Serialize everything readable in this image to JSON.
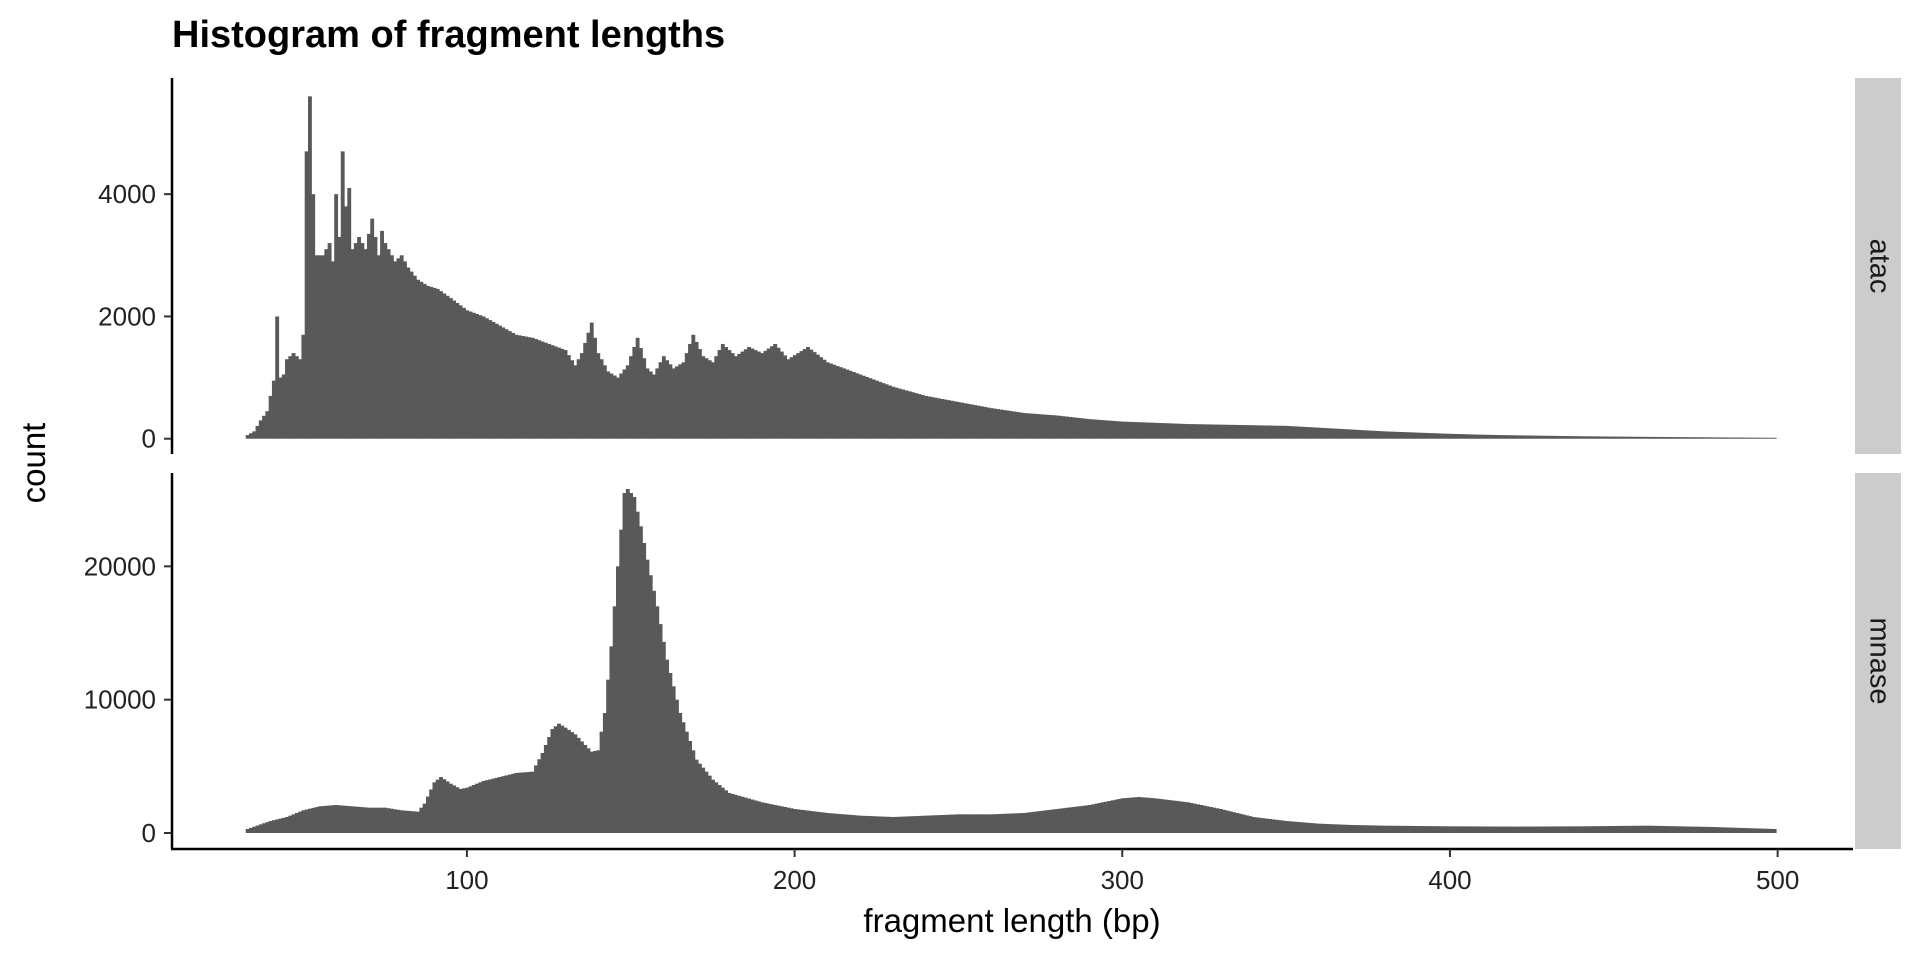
{
  "chart_data": {
    "type": "bar",
    "subtype": "faceted-histogram",
    "title": "Histogram of fragment lengths",
    "xlabel": "fragment length (bp)",
    "ylabel": "count",
    "xlim": [
      10,
      523
    ],
    "x_ticks": [
      100,
      200,
      300,
      400,
      500
    ],
    "bar_color": "#595959",
    "strip_color": "#cccccc",
    "grid": false,
    "bin_width": 1,
    "facets": [
      {
        "name": "atac",
        "ylim": [
          -250,
          5900
        ],
        "y_ticks": [
          0,
          2000,
          4000
        ],
        "peaks": [
          {
            "x": 33,
            "y": 60
          },
          {
            "x": 35,
            "y": 120
          },
          {
            "x": 37,
            "y": 300
          },
          {
            "x": 39,
            "y": 450
          },
          {
            "x": 41,
            "y": 950
          },
          {
            "x": 42,
            "y": 2000
          },
          {
            "x": 43,
            "y": 1000
          },
          {
            "x": 44,
            "y": 1050
          },
          {
            "x": 45,
            "y": 1300
          },
          {
            "x": 47,
            "y": 1400
          },
          {
            "x": 49,
            "y": 1300
          },
          {
            "x": 50,
            "y": 1700
          },
          {
            "x": 51,
            "y": 4700
          },
          {
            "x": 52,
            "y": 5600
          },
          {
            "x": 53,
            "y": 4000
          },
          {
            "x": 54,
            "y": 3000
          },
          {
            "x": 56,
            "y": 3000
          },
          {
            "x": 58,
            "y": 3200
          },
          {
            "x": 59,
            "y": 2900
          },
          {
            "x": 60,
            "y": 4000
          },
          {
            "x": 61,
            "y": 3300
          },
          {
            "x": 62,
            "y": 4700
          },
          {
            "x": 63,
            "y": 3800
          },
          {
            "x": 64,
            "y": 4100
          },
          {
            "x": 65,
            "y": 3100
          },
          {
            "x": 67,
            "y": 3300
          },
          {
            "x": 69,
            "y": 3100
          },
          {
            "x": 71,
            "y": 3600
          },
          {
            "x": 73,
            "y": 3000
          },
          {
            "x": 74,
            "y": 3400
          },
          {
            "x": 75,
            "y": 3200
          },
          {
            "x": 77,
            "y": 3000
          },
          {
            "x": 78,
            "y": 2900
          },
          {
            "x": 80,
            "y": 3000
          },
          {
            "x": 82,
            "y": 2800
          },
          {
            "x": 85,
            "y": 2600
          },
          {
            "x": 88,
            "y": 2500
          },
          {
            "x": 91,
            "y": 2450
          },
          {
            "x": 95,
            "y": 2300
          },
          {
            "x": 100,
            "y": 2100
          },
          {
            "x": 105,
            "y": 2000
          },
          {
            "x": 110,
            "y": 1850
          },
          {
            "x": 115,
            "y": 1700
          },
          {
            "x": 120,
            "y": 1650
          },
          {
            "x": 125,
            "y": 1550
          },
          {
            "x": 130,
            "y": 1450
          },
          {
            "x": 133,
            "y": 1200
          },
          {
            "x": 135,
            "y": 1400
          },
          {
            "x": 138,
            "y": 1900
          },
          {
            "x": 140,
            "y": 1400
          },
          {
            "x": 143,
            "y": 1100
          },
          {
            "x": 146,
            "y": 1000
          },
          {
            "x": 149,
            "y": 1200
          },
          {
            "x": 152,
            "y": 1650
          },
          {
            "x": 155,
            "y": 1150
          },
          {
            "x": 157,
            "y": 1050
          },
          {
            "x": 160,
            "y": 1350
          },
          {
            "x": 163,
            "y": 1150
          },
          {
            "x": 166,
            "y": 1250
          },
          {
            "x": 169,
            "y": 1700
          },
          {
            "x": 172,
            "y": 1350
          },
          {
            "x": 175,
            "y": 1250
          },
          {
            "x": 178,
            "y": 1550
          },
          {
            "x": 182,
            "y": 1350
          },
          {
            "x": 186,
            "y": 1500
          },
          {
            "x": 190,
            "y": 1400
          },
          {
            "x": 194,
            "y": 1550
          },
          {
            "x": 198,
            "y": 1300
          },
          {
            "x": 204,
            "y": 1500
          },
          {
            "x": 210,
            "y": 1250
          },
          {
            "x": 220,
            "y": 1050
          },
          {
            "x": 230,
            "y": 850
          },
          {
            "x": 240,
            "y": 700
          },
          {
            "x": 250,
            "y": 600
          },
          {
            "x": 260,
            "y": 500
          },
          {
            "x": 270,
            "y": 420
          },
          {
            "x": 280,
            "y": 380
          },
          {
            "x": 290,
            "y": 320
          },
          {
            "x": 300,
            "y": 280
          },
          {
            "x": 310,
            "y": 260
          },
          {
            "x": 320,
            "y": 240
          },
          {
            "x": 330,
            "y": 230
          },
          {
            "x": 340,
            "y": 220
          },
          {
            "x": 350,
            "y": 210
          },
          {
            "x": 360,
            "y": 180
          },
          {
            "x": 370,
            "y": 150
          },
          {
            "x": 380,
            "y": 120
          },
          {
            "x": 390,
            "y": 100
          },
          {
            "x": 400,
            "y": 80
          },
          {
            "x": 410,
            "y": 65
          },
          {
            "x": 420,
            "y": 55
          },
          {
            "x": 440,
            "y": 40
          },
          {
            "x": 460,
            "y": 30
          },
          {
            "x": 480,
            "y": 22
          },
          {
            "x": 499,
            "y": 15
          }
        ]
      },
      {
        "name": "mnase",
        "ylim": [
          -1200,
          27000
        ],
        "y_ticks": [
          0,
          10000,
          20000
        ],
        "peaks": [
          {
            "x": 33,
            "y": 300
          },
          {
            "x": 40,
            "y": 900
          },
          {
            "x": 45,
            "y": 1200
          },
          {
            "x": 50,
            "y": 1700
          },
          {
            "x": 55,
            "y": 2000
          },
          {
            "x": 60,
            "y": 2100
          },
          {
            "x": 65,
            "y": 2000
          },
          {
            "x": 70,
            "y": 1900
          },
          {
            "x": 75,
            "y": 1900
          },
          {
            "x": 80,
            "y": 1700
          },
          {
            "x": 85,
            "y": 1600
          },
          {
            "x": 87,
            "y": 2200
          },
          {
            "x": 90,
            "y": 3800
          },
          {
            "x": 92,
            "y": 4200
          },
          {
            "x": 95,
            "y": 3700
          },
          {
            "x": 98,
            "y": 3300
          },
          {
            "x": 100,
            "y": 3400
          },
          {
            "x": 105,
            "y": 3900
          },
          {
            "x": 110,
            "y": 4200
          },
          {
            "x": 115,
            "y": 4500
          },
          {
            "x": 120,
            "y": 4600
          },
          {
            "x": 123,
            "y": 6000
          },
          {
            "x": 126,
            "y": 7800
          },
          {
            "x": 128,
            "y": 8200
          },
          {
            "x": 130,
            "y": 7900
          },
          {
            "x": 133,
            "y": 7400
          },
          {
            "x": 136,
            "y": 6600
          },
          {
            "x": 138,
            "y": 6100
          },
          {
            "x": 140,
            "y": 6200
          },
          {
            "x": 142,
            "y": 9000
          },
          {
            "x": 144,
            "y": 14000
          },
          {
            "x": 146,
            "y": 20000
          },
          {
            "x": 148,
            "y": 25500
          },
          {
            "x": 149,
            "y": 25800
          },
          {
            "x": 151,
            "y": 25200
          },
          {
            "x": 153,
            "y": 23000
          },
          {
            "x": 155,
            "y": 20500
          },
          {
            "x": 158,
            "y": 17000
          },
          {
            "x": 161,
            "y": 13000
          },
          {
            "x": 165,
            "y": 9000
          },
          {
            "x": 170,
            "y": 5500
          },
          {
            "x": 175,
            "y": 4000
          },
          {
            "x": 180,
            "y": 3000
          },
          {
            "x": 190,
            "y": 2300
          },
          {
            "x": 200,
            "y": 1800
          },
          {
            "x": 210,
            "y": 1500
          },
          {
            "x": 220,
            "y": 1300
          },
          {
            "x": 230,
            "y": 1200
          },
          {
            "x": 240,
            "y": 1300
          },
          {
            "x": 250,
            "y": 1400
          },
          {
            "x": 260,
            "y": 1400
          },
          {
            "x": 270,
            "y": 1500
          },
          {
            "x": 280,
            "y": 1800
          },
          {
            "x": 290,
            "y": 2100
          },
          {
            "x": 300,
            "y": 2600
          },
          {
            "x": 305,
            "y": 2700
          },
          {
            "x": 310,
            "y": 2600
          },
          {
            "x": 320,
            "y": 2300
          },
          {
            "x": 330,
            "y": 1800
          },
          {
            "x": 340,
            "y": 1200
          },
          {
            "x": 350,
            "y": 900
          },
          {
            "x": 360,
            "y": 700
          },
          {
            "x": 370,
            "y": 600
          },
          {
            "x": 380,
            "y": 550
          },
          {
            "x": 400,
            "y": 500
          },
          {
            "x": 420,
            "y": 480
          },
          {
            "x": 440,
            "y": 500
          },
          {
            "x": 460,
            "y": 550
          },
          {
            "x": 480,
            "y": 450
          },
          {
            "x": 499,
            "y": 300
          }
        ]
      }
    ]
  }
}
